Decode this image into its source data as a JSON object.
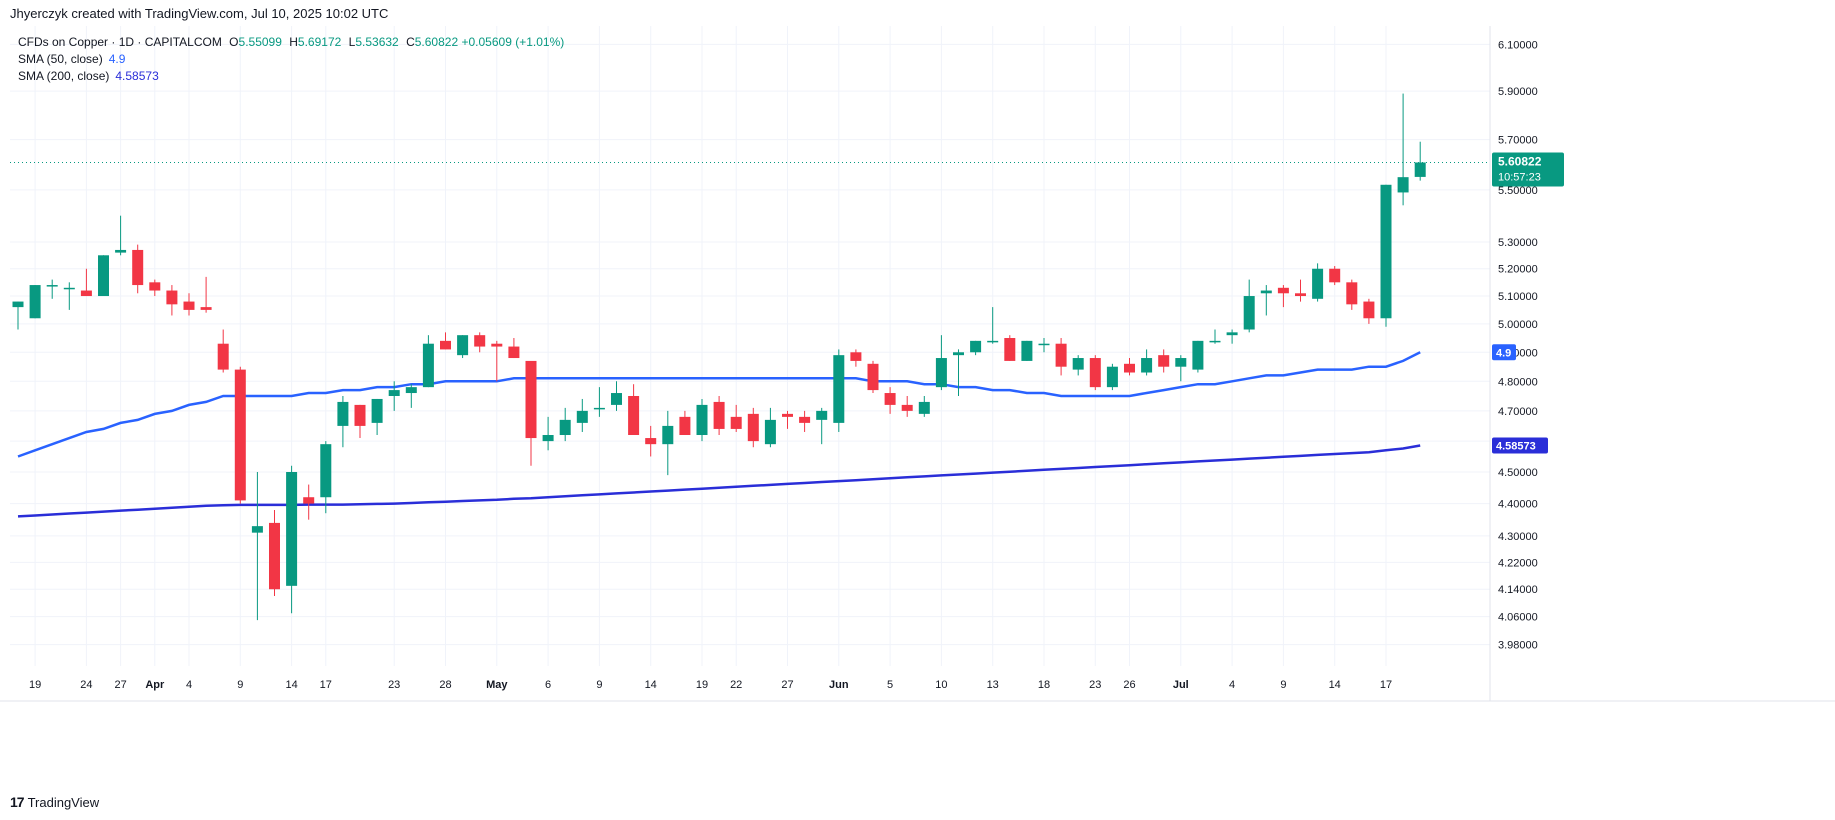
{
  "header": {
    "created_text": "Jhyerczyk created with TradingView.com, Jul 10, 2025 10:02 UTC"
  },
  "legend": {
    "symbol": "CFDs on Copper · 1D · CAPITALCOM",
    "o_label": "O",
    "o": "5.55099",
    "h_label": "H",
    "h": "5.69172",
    "l_label": "L",
    "l": "5.53632",
    "c_label": "C",
    "c": "5.60822",
    "change": "+0.05609 (+1.01%)",
    "sma50_label": "SMA (50, close)",
    "sma50_value": "4.9",
    "sma200_label": "SMA (200, close)",
    "sma200_value": "4.58573"
  },
  "footer": {
    "brand": "TradingView",
    "logo_glyph": "17"
  },
  "colors": {
    "up": "#089981",
    "down": "#f23645",
    "sma50": "#2962ff",
    "sma200": "#2a2ed8",
    "grid": "#f0f3fa",
    "text": "#131722"
  },
  "chart_data": {
    "type": "candlestick",
    "title": "CFDs on Copper · 1D · CAPITALCOM",
    "y_scale": "log",
    "ylim": [
      3.92,
      6.18
    ],
    "y_ticks": [
      "6.10000",
      "5.90000",
      "5.70000",
      "5.50000",
      "5.30000",
      "5.20000",
      "5.10000",
      "5.00000",
      "4.90000",
      "4.80000",
      "4.70000",
      "4.60000",
      "4.50000",
      "4.40000",
      "4.30000",
      "4.22000",
      "4.14000",
      "4.06000",
      "3.98000"
    ],
    "x_ticks": [
      "19",
      "24",
      "27",
      "Apr",
      "4",
      "9",
      "14",
      "17",
      "23",
      "28",
      "May",
      "6",
      "9",
      "14",
      "19",
      "22",
      "27",
      "Jun",
      "5",
      "10",
      "13",
      "18",
      "23",
      "26",
      "Jul",
      "4",
      "9",
      "14",
      "17"
    ],
    "x_ticks_bold": [
      "Apr",
      "May",
      "Jun",
      "Jul"
    ],
    "last_price_label": "5.60822",
    "countdown_label": "10:57:23",
    "sma50_axis_label": "4.9",
    "sma200_axis_label": "4.58573",
    "candles": [
      {
        "o": 5.06,
        "h": 5.08,
        "l": 4.98,
        "c": 5.08
      },
      {
        "o": 5.02,
        "h": 5.14,
        "l": 5.02,
        "c": 5.14
      },
      {
        "o": 5.14,
        "h": 5.16,
        "l": 5.09,
        "c": 5.14
      },
      {
        "o": 5.13,
        "h": 5.15,
        "l": 5.05,
        "c": 5.13
      },
      {
        "o": 5.12,
        "h": 5.2,
        "l": 5.1,
        "c": 5.1
      },
      {
        "o": 5.1,
        "h": 5.25,
        "l": 5.1,
        "c": 5.25
      },
      {
        "o": 5.26,
        "h": 5.4,
        "l": 5.25,
        "c": 5.27
      },
      {
        "o": 5.27,
        "h": 5.29,
        "l": 5.11,
        "c": 5.14
      },
      {
        "o": 5.15,
        "h": 5.16,
        "l": 5.1,
        "c": 5.12
      },
      {
        "o": 5.12,
        "h": 5.14,
        "l": 5.03,
        "c": 5.07
      },
      {
        "o": 5.08,
        "h": 5.11,
        "l": 5.03,
        "c": 5.05
      },
      {
        "o": 5.06,
        "h": 5.17,
        "l": 5.04,
        "c": 5.05
      },
      {
        "o": 4.93,
        "h": 4.98,
        "l": 4.83,
        "c": 4.84
      },
      {
        "o": 4.84,
        "h": 4.85,
        "l": 4.4,
        "c": 4.41
      },
      {
        "o": 4.31,
        "h": 4.5,
        "l": 4.05,
        "c": 4.33
      },
      {
        "o": 4.34,
        "h": 4.38,
        "l": 4.12,
        "c": 4.14
      },
      {
        "o": 4.15,
        "h": 4.52,
        "l": 4.07,
        "c": 4.5
      },
      {
        "o": 4.42,
        "h": 4.46,
        "l": 4.35,
        "c": 4.4
      },
      {
        "o": 4.42,
        "h": 4.6,
        "l": 4.37,
        "c": 4.59
      },
      {
        "o": 4.65,
        "h": 4.75,
        "l": 4.58,
        "c": 4.73
      },
      {
        "o": 4.72,
        "h": 4.72,
        "l": 4.61,
        "c": 4.65
      },
      {
        "o": 4.66,
        "h": 4.74,
        "l": 4.62,
        "c": 4.74
      },
      {
        "o": 4.75,
        "h": 4.8,
        "l": 4.7,
        "c": 4.77
      },
      {
        "o": 4.76,
        "h": 4.79,
        "l": 4.71,
        "c": 4.78
      },
      {
        "o": 4.78,
        "h": 4.96,
        "l": 4.78,
        "c": 4.93
      },
      {
        "o": 4.94,
        "h": 4.97,
        "l": 4.91,
        "c": 4.91
      },
      {
        "o": 4.89,
        "h": 4.96,
        "l": 4.88,
        "c": 4.96
      },
      {
        "o": 4.96,
        "h": 4.97,
        "l": 4.9,
        "c": 4.92
      },
      {
        "o": 4.93,
        "h": 4.94,
        "l": 4.8,
        "c": 4.92
      },
      {
        "o": 4.92,
        "h": 4.95,
        "l": 4.88,
        "c": 4.88
      },
      {
        "o": 4.87,
        "h": 4.86,
        "l": 4.52,
        "c": 4.61
      },
      {
        "o": 4.6,
        "h": 4.68,
        "l": 4.57,
        "c": 4.62
      },
      {
        "o": 4.62,
        "h": 4.71,
        "l": 4.6,
        "c": 4.67
      },
      {
        "o": 4.66,
        "h": 4.74,
        "l": 4.63,
        "c": 4.7
      },
      {
        "o": 4.71,
        "h": 4.78,
        "l": 4.68,
        "c": 4.71
      },
      {
        "o": 4.72,
        "h": 4.8,
        "l": 4.7,
        "c": 4.76
      },
      {
        "o": 4.75,
        "h": 4.79,
        "l": 4.62,
        "c": 4.62
      },
      {
        "o": 4.61,
        "h": 4.65,
        "l": 4.55,
        "c": 4.59
      },
      {
        "o": 4.59,
        "h": 4.7,
        "l": 4.49,
        "c": 4.65
      },
      {
        "o": 4.68,
        "h": 4.7,
        "l": 4.62,
        "c": 4.62
      },
      {
        "o": 4.62,
        "h": 4.74,
        "l": 4.6,
        "c": 4.72
      },
      {
        "o": 4.73,
        "h": 4.75,
        "l": 4.62,
        "c": 4.64
      },
      {
        "o": 4.68,
        "h": 4.72,
        "l": 4.63,
        "c": 4.64
      },
      {
        "o": 4.69,
        "h": 4.71,
        "l": 4.58,
        "c": 4.6
      },
      {
        "o": 4.59,
        "h": 4.71,
        "l": 4.58,
        "c": 4.67
      },
      {
        "o": 4.69,
        "h": 4.7,
        "l": 4.64,
        "c": 4.68
      },
      {
        "o": 4.68,
        "h": 4.7,
        "l": 4.63,
        "c": 4.66
      },
      {
        "o": 4.67,
        "h": 4.71,
        "l": 4.59,
        "c": 4.7
      },
      {
        "o": 4.66,
        "h": 4.91,
        "l": 4.63,
        "c": 4.89
      },
      {
        "o": 4.9,
        "h": 4.91,
        "l": 4.85,
        "c": 4.87
      },
      {
        "o": 4.86,
        "h": 4.87,
        "l": 4.76,
        "c": 4.77
      },
      {
        "o": 4.76,
        "h": 4.78,
        "l": 4.69,
        "c": 4.72
      },
      {
        "o": 4.72,
        "h": 4.75,
        "l": 4.68,
        "c": 4.7
      },
      {
        "o": 4.69,
        "h": 4.75,
        "l": 4.68,
        "c": 4.73
      },
      {
        "o": 4.78,
        "h": 4.96,
        "l": 4.77,
        "c": 4.88
      },
      {
        "o": 4.89,
        "h": 4.91,
        "l": 4.75,
        "c": 4.9
      },
      {
        "o": 4.9,
        "h": 4.94,
        "l": 4.89,
        "c": 4.94
      },
      {
        "o": 4.94,
        "h": 5.06,
        "l": 4.93,
        "c": 4.94
      },
      {
        "o": 4.95,
        "h": 4.96,
        "l": 4.87,
        "c": 4.87
      },
      {
        "o": 4.87,
        "h": 4.94,
        "l": 4.87,
        "c": 4.94
      },
      {
        "o": 4.93,
        "h": 4.95,
        "l": 4.9,
        "c": 4.93
      },
      {
        "o": 4.93,
        "h": 4.95,
        "l": 4.82,
        "c": 4.85
      },
      {
        "o": 4.84,
        "h": 4.89,
        "l": 4.82,
        "c": 4.88
      },
      {
        "o": 4.88,
        "h": 4.89,
        "l": 4.77,
        "c": 4.78
      },
      {
        "o": 4.78,
        "h": 4.86,
        "l": 4.77,
        "c": 4.85
      },
      {
        "o": 4.86,
        "h": 4.88,
        "l": 4.82,
        "c": 4.83
      },
      {
        "o": 4.83,
        "h": 4.91,
        "l": 4.82,
        "c": 4.88
      },
      {
        "o": 4.89,
        "h": 4.91,
        "l": 4.83,
        "c": 4.85
      },
      {
        "o": 4.85,
        "h": 4.89,
        "l": 4.8,
        "c": 4.88
      },
      {
        "o": 4.84,
        "h": 4.94,
        "l": 4.83,
        "c": 4.94
      },
      {
        "o": 4.94,
        "h": 4.98,
        "l": 4.93,
        "c": 4.94
      },
      {
        "o": 4.96,
        "h": 4.98,
        "l": 4.93,
        "c": 4.97
      },
      {
        "o": 4.98,
        "h": 5.16,
        "l": 4.97,
        "c": 5.1
      },
      {
        "o": 5.11,
        "h": 5.14,
        "l": 5.03,
        "c": 5.12
      },
      {
        "o": 5.13,
        "h": 5.14,
        "l": 5.06,
        "c": 5.11
      },
      {
        "o": 5.11,
        "h": 5.16,
        "l": 5.08,
        "c": 5.1
      },
      {
        "o": 5.09,
        "h": 5.22,
        "l": 5.08,
        "c": 5.2
      },
      {
        "o": 5.2,
        "h": 5.21,
        "l": 5.14,
        "c": 5.15
      },
      {
        "o": 5.15,
        "h": 5.16,
        "l": 5.05,
        "c": 5.07
      },
      {
        "o": 5.08,
        "h": 5.09,
        "l": 5.0,
        "c": 5.02
      },
      {
        "o": 5.02,
        "h": 5.52,
        "l": 4.99,
        "c": 5.52
      },
      {
        "o": 5.49,
        "h": 5.89,
        "l": 5.44,
        "c": 5.55
      },
      {
        "o": 5.55099,
        "h": 5.69172,
        "l": 5.53632,
        "c": 5.60822
      }
    ],
    "sma50": [
      4.55,
      4.57,
      4.59,
      4.61,
      4.63,
      4.64,
      4.66,
      4.67,
      4.69,
      4.7,
      4.72,
      4.73,
      4.75,
      4.75,
      4.75,
      4.75,
      4.75,
      4.76,
      4.76,
      4.77,
      4.77,
      4.78,
      4.78,
      4.79,
      4.79,
      4.8,
      4.8,
      4.8,
      4.8,
      4.81,
      4.81,
      4.81,
      4.81,
      4.81,
      4.81,
      4.81,
      4.81,
      4.81,
      4.81,
      4.81,
      4.81,
      4.81,
      4.81,
      4.81,
      4.81,
      4.81,
      4.81,
      4.81,
      4.81,
      4.81,
      4.8,
      4.8,
      4.8,
      4.79,
      4.79,
      4.78,
      4.78,
      4.77,
      4.77,
      4.76,
      4.76,
      4.75,
      4.75,
      4.75,
      4.75,
      4.75,
      4.76,
      4.77,
      4.78,
      4.79,
      4.79,
      4.8,
      4.81,
      4.82,
      4.82,
      4.83,
      4.84,
      4.84,
      4.84,
      4.85,
      4.85,
      4.87,
      4.9
    ],
    "sma200": [
      4.36,
      4.363,
      4.366,
      4.369,
      4.372,
      4.375,
      4.378,
      4.381,
      4.384,
      4.387,
      4.39,
      4.393,
      4.395,
      4.396,
      4.396,
      4.396,
      4.396,
      4.397,
      4.397,
      4.397,
      4.398,
      4.399,
      4.4,
      4.402,
      4.404,
      4.406,
      4.408,
      4.41,
      4.412,
      4.415,
      4.417,
      4.42,
      4.423,
      4.426,
      4.429,
      4.432,
      4.435,
      4.438,
      4.441,
      4.444,
      4.447,
      4.45,
      4.453,
      4.456,
      4.459,
      4.462,
      4.465,
      4.468,
      4.471,
      4.474,
      4.477,
      4.48,
      4.483,
      4.486,
      4.489,
      4.492,
      4.495,
      4.498,
      4.501,
      4.504,
      4.507,
      4.51,
      4.513,
      4.516,
      4.519,
      4.522,
      4.525,
      4.528,
      4.531,
      4.534,
      4.537,
      4.54,
      4.543,
      4.546,
      4.549,
      4.552,
      4.555,
      4.558,
      4.561,
      4.564,
      4.57,
      4.576,
      4.58573
    ]
  }
}
